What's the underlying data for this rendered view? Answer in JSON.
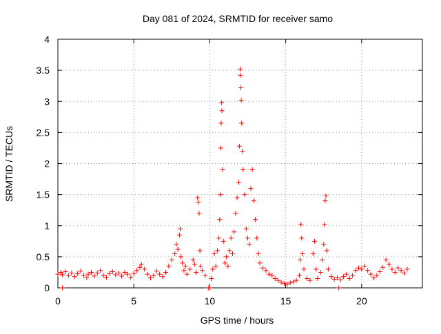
{
  "chart_data": {
    "type": "scatter",
    "title": "Day 081 of 2024, SRMTID for receiver samo",
    "xlabel": "GPS time / hours",
    "ylabel": "SRMTID / TECUs",
    "xlim": [
      0,
      24
    ],
    "ylim": [
      0,
      4
    ],
    "x_ticks": [
      "0",
      "5",
      "10",
      "15",
      "20"
    ],
    "y_ticks": [
      "0",
      "0.5",
      "1",
      "1.5",
      "2",
      "2.5",
      "3",
      "3.5",
      "4"
    ],
    "grid": true,
    "marker": "+",
    "color": "#ff0000",
    "series": [
      {
        "name": "SRMTID",
        "points": [
          [
            0.0,
            0.22
          ],
          [
            0.2,
            0.25
          ],
          [
            0.3,
            0.21
          ],
          [
            0.3,
            0.0
          ],
          [
            0.5,
            0.26
          ],
          [
            0.7,
            0.2
          ],
          [
            0.9,
            0.24
          ],
          [
            1.1,
            0.18
          ],
          [
            1.3,
            0.23
          ],
          [
            1.5,
            0.27
          ],
          [
            1.7,
            0.2
          ],
          [
            1.9,
            0.16
          ],
          [
            2.0,
            0.22
          ],
          [
            2.2,
            0.25
          ],
          [
            2.4,
            0.19
          ],
          [
            2.6,
            0.24
          ],
          [
            2.8,
            0.28
          ],
          [
            3.0,
            0.2
          ],
          [
            3.2,
            0.17
          ],
          [
            3.4,
            0.23
          ],
          [
            3.6,
            0.26
          ],
          [
            3.8,
            0.21
          ],
          [
            4.0,
            0.24
          ],
          [
            4.2,
            0.19
          ],
          [
            4.4,
            0.25
          ],
          [
            4.6,
            0.22
          ],
          [
            4.8,
            0.17
          ],
          [
            5.0,
            0.23
          ],
          [
            5.2,
            0.28
          ],
          [
            5.4,
            0.33
          ],
          [
            5.5,
            0.38
          ],
          [
            5.7,
            0.3
          ],
          [
            5.9,
            0.22
          ],
          [
            6.1,
            0.16
          ],
          [
            6.3,
            0.2
          ],
          [
            6.5,
            0.27
          ],
          [
            6.7,
            0.22
          ],
          [
            6.9,
            0.18
          ],
          [
            7.1,
            0.25
          ],
          [
            7.3,
            0.35
          ],
          [
            7.5,
            0.45
          ],
          [
            7.7,
            0.55
          ],
          [
            7.8,
            0.7
          ],
          [
            7.9,
            0.62
          ],
          [
            8.0,
            0.85
          ],
          [
            8.05,
            0.95
          ],
          [
            8.1,
            0.5
          ],
          [
            8.2,
            0.4
          ],
          [
            8.3,
            0.28
          ],
          [
            8.4,
            0.35
          ],
          [
            8.5,
            0.22
          ],
          [
            8.7,
            0.3
          ],
          [
            8.9,
            0.45
          ],
          [
            9.0,
            0.38
          ],
          [
            9.1,
            0.25
          ],
          [
            9.2,
            1.45
          ],
          [
            9.25,
            1.38
          ],
          [
            9.3,
            1.2
          ],
          [
            9.35,
            0.6
          ],
          [
            9.4,
            0.35
          ],
          [
            9.5,
            0.28
          ],
          [
            9.7,
            0.2
          ],
          [
            9.9,
            0.0
          ],
          [
            10.0,
            0.0
          ],
          [
            10.1,
            0.15
          ],
          [
            10.2,
            0.3
          ],
          [
            10.3,
            0.55
          ],
          [
            10.4,
            0.35
          ],
          [
            10.5,
            0.6
          ],
          [
            10.6,
            0.8
          ],
          [
            10.65,
            1.1
          ],
          [
            10.7,
            1.5
          ],
          [
            10.72,
            2.25
          ],
          [
            10.75,
            2.65
          ],
          [
            10.78,
            2.98
          ],
          [
            10.8,
            2.85
          ],
          [
            10.85,
            1.9
          ],
          [
            10.9,
            0.75
          ],
          [
            11.0,
            0.4
          ],
          [
            11.1,
            0.5
          ],
          [
            11.2,
            0.35
          ],
          [
            11.3,
            0.6
          ],
          [
            11.4,
            0.8
          ],
          [
            11.5,
            0.55
          ],
          [
            11.6,
            0.9
          ],
          [
            11.7,
            1.2
          ],
          [
            11.8,
            1.45
          ],
          [
            11.9,
            1.7
          ],
          [
            11.95,
            2.28
          ],
          [
            12.0,
            3.52
          ],
          [
            12.02,
            3.42
          ],
          [
            12.05,
            3.22
          ],
          [
            12.07,
            3.02
          ],
          [
            12.1,
            2.65
          ],
          [
            12.15,
            2.2
          ],
          [
            12.2,
            1.9
          ],
          [
            12.3,
            1.5
          ],
          [
            12.4,
            0.95
          ],
          [
            12.5,
            0.8
          ],
          [
            12.6,
            0.7
          ],
          [
            12.7,
            1.6
          ],
          [
            12.8,
            1.9
          ],
          [
            12.9,
            1.4
          ],
          [
            13.0,
            1.1
          ],
          [
            13.1,
            0.8
          ],
          [
            13.2,
            0.55
          ],
          [
            13.3,
            0.4
          ],
          [
            13.5,
            0.32
          ],
          [
            13.7,
            0.28
          ],
          [
            13.9,
            0.22
          ],
          [
            14.1,
            0.2
          ],
          [
            14.3,
            0.15
          ],
          [
            14.5,
            0.12
          ],
          [
            14.7,
            0.09
          ],
          [
            14.9,
            0.07
          ],
          [
            15.1,
            0.06
          ],
          [
            15.3,
            0.08
          ],
          [
            15.5,
            0.1
          ],
          [
            15.7,
            0.12
          ],
          [
            15.9,
            0.2
          ],
          [
            15.95,
            0.45
          ],
          [
            16.0,
            1.02
          ],
          [
            16.05,
            0.8
          ],
          [
            16.1,
            0.55
          ],
          [
            16.2,
            0.3
          ],
          [
            16.4,
            0.15
          ],
          [
            16.6,
            0.12
          ],
          [
            16.8,
            0.55
          ],
          [
            16.9,
            0.75
          ],
          [
            17.0,
            0.3
          ],
          [
            17.1,
            0.15
          ],
          [
            17.3,
            0.25
          ],
          [
            17.4,
            0.45
          ],
          [
            17.5,
            0.7
          ],
          [
            17.55,
            1.02
          ],
          [
            17.6,
            1.4
          ],
          [
            17.65,
            1.48
          ],
          [
            17.7,
            0.6
          ],
          [
            17.8,
            0.3
          ],
          [
            18.0,
            0.18
          ],
          [
            18.2,
            0.14
          ],
          [
            18.4,
            0.16
          ],
          [
            18.5,
            0.0
          ],
          [
            18.6,
            0.13
          ],
          [
            18.8,
            0.18
          ],
          [
            19.0,
            0.22
          ],
          [
            19.2,
            0.15
          ],
          [
            19.4,
            0.2
          ],
          [
            19.6,
            0.28
          ],
          [
            19.8,
            0.32
          ],
          [
            20.0,
            0.3
          ],
          [
            20.2,
            0.35
          ],
          [
            20.4,
            0.28
          ],
          [
            20.6,
            0.22
          ],
          [
            20.8,
            0.16
          ],
          [
            21.0,
            0.2
          ],
          [
            21.2,
            0.26
          ],
          [
            21.4,
            0.33
          ],
          [
            21.6,
            0.45
          ],
          [
            21.8,
            0.38
          ],
          [
            22.0,
            0.3
          ],
          [
            22.2,
            0.25
          ],
          [
            22.4,
            0.32
          ],
          [
            22.6,
            0.28
          ],
          [
            22.8,
            0.24
          ],
          [
            23.0,
            0.3
          ]
        ]
      }
    ]
  }
}
